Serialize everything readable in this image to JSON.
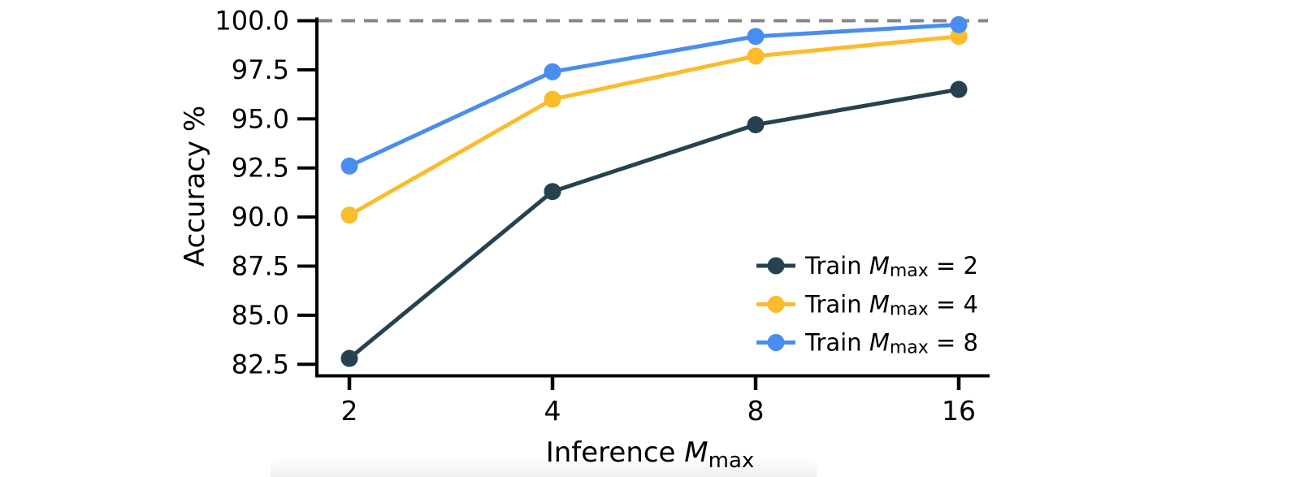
{
  "figure": {
    "background": "#ffffff",
    "text_color": "#000000",
    "axis_color": "#000000"
  },
  "chart_data": {
    "type": "line",
    "title": "",
    "xlabel": "Inference M_max",
    "xlabel_parts": {
      "prefix": "Inference ",
      "symbol": "M",
      "subscript": "max",
      "suffix": ""
    },
    "ylabel": "Accuracy %",
    "x_categories": [
      2,
      4,
      8,
      16
    ],
    "x_scale": "log2 (equal categorical spacing)",
    "xlim_labels": [
      "2",
      "4",
      "8",
      "16"
    ],
    "yticks": [
      100.0,
      97.5,
      95.0,
      92.5,
      90.0,
      87.5,
      85.0,
      82.5
    ],
    "ylim": [
      81.8,
      100.4
    ],
    "grid": false,
    "reference_line": {
      "y": 100.0,
      "style": "dashed",
      "color": "#878787"
    },
    "legend": {
      "position": "lower-right",
      "frame": false,
      "entries": [
        "Train M_max = 2",
        "Train M_max = 4",
        "Train M_max = 8"
      ]
    },
    "series": [
      {
        "name": "Train M_max = 2",
        "label_parts": {
          "prefix": "Train ",
          "symbol": "M",
          "subscript": "max",
          "suffix": " = 2"
        },
        "color": "#26424F",
        "marker": "circle",
        "values": [
          82.8,
          91.3,
          94.7,
          96.5
        ]
      },
      {
        "name": "Train M_max = 4",
        "label_parts": {
          "prefix": "Train ",
          "symbol": "M",
          "subscript": "max",
          "suffix": " = 4"
        },
        "color": "#FBBC2C",
        "marker": "circle",
        "values": [
          90.1,
          96.0,
          98.2,
          99.2
        ]
      },
      {
        "name": "Train M_max = 8",
        "label_parts": {
          "prefix": "Train ",
          "symbol": "M",
          "subscript": "max",
          "suffix": " = 8"
        },
        "color": "#4A8DF0",
        "marker": "circle",
        "values": [
          92.6,
          97.4,
          99.2,
          99.8
        ]
      }
    ]
  }
}
